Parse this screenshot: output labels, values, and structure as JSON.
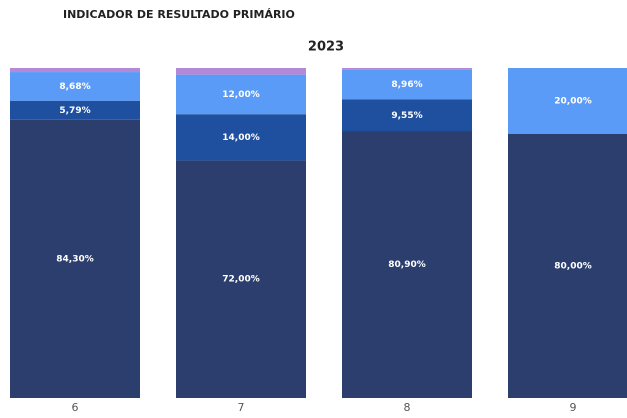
{
  "chart_data": {
    "type": "stacked_bar",
    "title": "INDICADOR DE RESULTADO PRIMÁRIO",
    "subtitle": "2023",
    "categories": [
      "6",
      "7",
      "8",
      "9"
    ],
    "ylim": [
      0,
      100
    ],
    "series": [
      {
        "color": "#2b3e6e",
        "values": [
          84.3,
          72.0,
          80.9,
          80.0
        ],
        "value_labels": [
          "84,30%",
          "72,00%",
          "80,90%",
          "80,00%"
        ]
      },
      {
        "color": "#1f50a0",
        "values": [
          5.79,
          14.0,
          9.55,
          0
        ],
        "value_labels": [
          "5,79%",
          "14,00%",
          "9,55%",
          null
        ]
      },
      {
        "color": "#5b9bf8",
        "values": [
          8.68,
          12.0,
          8.96,
          20.0
        ],
        "value_labels": [
          "8,68%",
          "12,00%",
          "8,96%",
          "20,00%"
        ]
      },
      {
        "color": "#b48ad8",
        "values": [
          1.23,
          2.0,
          0.59,
          0
        ]
      }
    ]
  }
}
